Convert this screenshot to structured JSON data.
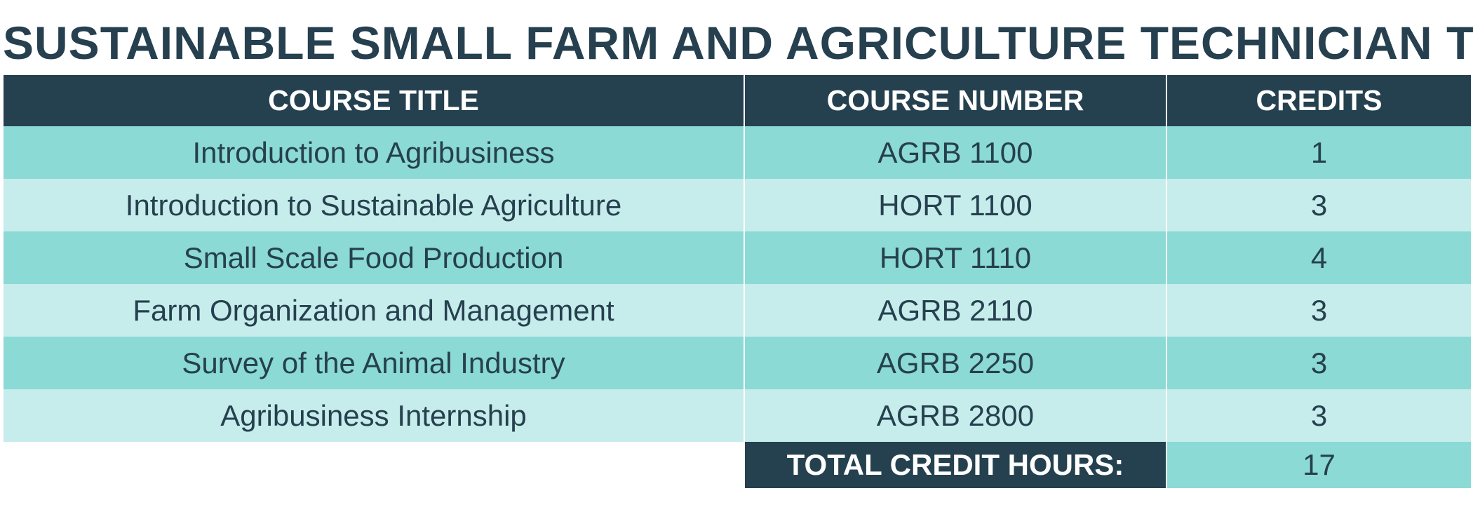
{
  "title": "SUSTAINABLE SMALL FARM AND AGRICULTURE TECHNICIAN TCC",
  "columns": [
    "COURSE TITLE",
    "COURSE NUMBER",
    "CREDITS"
  ],
  "rows": [
    {
      "title": "Introduction to Agribusiness",
      "number": "AGRB 1100",
      "credits": "1"
    },
    {
      "title": "Introduction to Sustainable Agriculture",
      "number": "HORT 1100",
      "credits": "3"
    },
    {
      "title": "Small Scale Food Production",
      "number": "HORT 1110",
      "credits": "4"
    },
    {
      "title": "Farm Organization and Management",
      "number": "AGRB 2110",
      "credits": "3"
    },
    {
      "title": "Survey of the Animal Industry",
      "number": "AGRB 2250",
      "credits": "3"
    },
    {
      "title": "Agribusiness Internship",
      "number": "AGRB 2800",
      "credits": "3"
    }
  ],
  "total": {
    "label": "TOTAL CREDIT HOURS:",
    "value": "17"
  },
  "colors": {
    "header": "#25414f",
    "row_dark": "#8bdad5",
    "row_light": "#c6edeb",
    "text": "#26404f"
  }
}
